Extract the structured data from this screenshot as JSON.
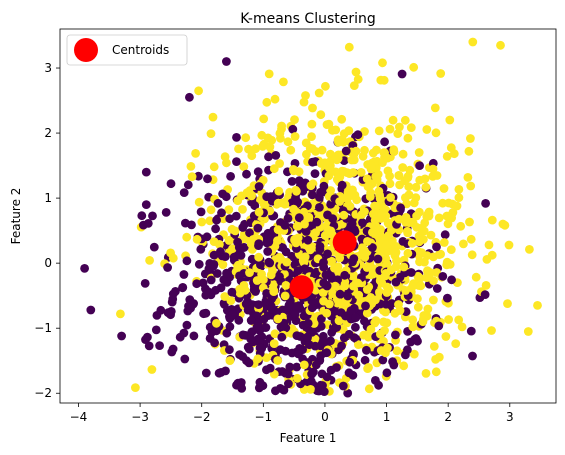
{
  "chart_data": {
    "type": "scatter",
    "title": "K-means Clustering",
    "xlabel": "Feature 1",
    "ylabel": "Feature 2",
    "xlim": [
      -4.3,
      3.75
    ],
    "ylim": [
      -2.15,
      3.6
    ],
    "x_ticks": [
      -4,
      -3,
      -2,
      -1,
      0,
      1,
      2,
      3
    ],
    "y_ticks": [
      -2,
      -1,
      0,
      1,
      2,
      3
    ],
    "grid": false,
    "legend": {
      "placement": "top-left",
      "entries": [
        "Centroids"
      ]
    },
    "clusters": [
      {
        "color": "#440154",
        "center": [
          -0.4,
          -0.35
        ],
        "spread": [
          1.0,
          0.95
        ],
        "count": 900
      },
      {
        "color": "#fde725",
        "center": [
          0.3,
          0.3
        ],
        "spread": [
          1.05,
          1.05
        ],
        "count": 1000
      }
    ],
    "series": [
      {
        "name": "Centroids",
        "color": "#ff0000",
        "points": [
          {
            "x": -0.38,
            "y": -0.37
          },
          {
            "x": 0.32,
            "y": 0.32
          }
        ]
      }
    ],
    "outliers": [
      {
        "x": -3.9,
        "y": -0.08,
        "cluster": 0
      },
      {
        "x": -3.8,
        "y": -0.72,
        "cluster": 0
      },
      {
        "x": -3.3,
        "y": -1.12,
        "cluster": 0
      },
      {
        "x": -3.32,
        "y": -0.78,
        "cluster": 1
      },
      {
        "x": -2.2,
        "y": 2.55,
        "cluster": 0
      },
      {
        "x": -2.05,
        "y": 2.65,
        "cluster": 1
      },
      {
        "x": -1.6,
        "y": 3.1,
        "cluster": 0
      },
      {
        "x": -2.9,
        "y": 1.4,
        "cluster": 0
      },
      {
        "x": -2.9,
        "y": 0.9,
        "cluster": 0
      },
      {
        "x": 2.4,
        "y": 3.4,
        "cluster": 1
      },
      {
        "x": 2.85,
        "y": 3.35,
        "cluster": 1
      },
      {
        "x": 3.3,
        "y": -1.05,
        "cluster": 1
      },
      {
        "x": 3.45,
        "y": -0.65,
        "cluster": 1
      }
    ]
  }
}
